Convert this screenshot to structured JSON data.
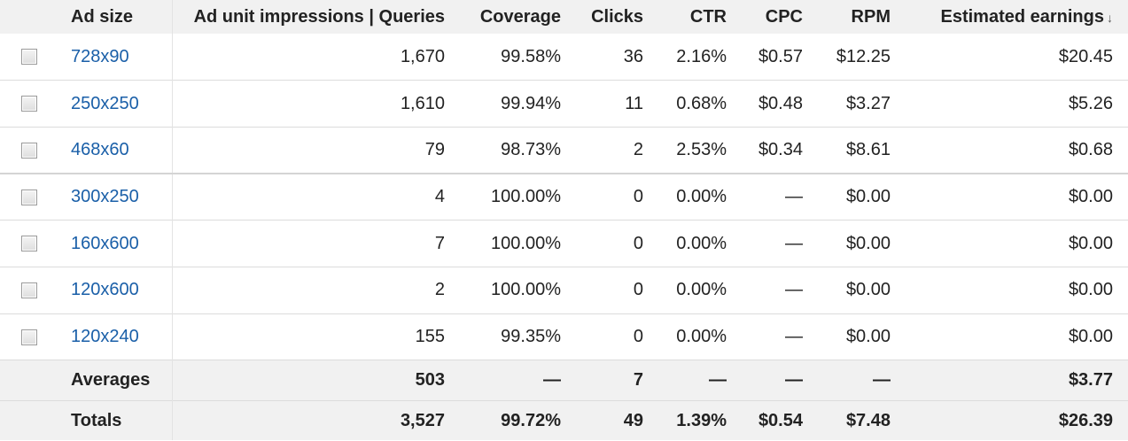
{
  "headers": {
    "ad_size": "Ad size",
    "impressions": "Ad unit impressions | Queries",
    "coverage": "Coverage",
    "clicks": "Clicks",
    "ctr": "CTR",
    "cpc": "CPC",
    "rpm": "RPM",
    "earnings": "Estimated earnings",
    "earnings_sort_icon": "↓"
  },
  "rows": [
    {
      "size": "728x90",
      "impressions": "1,670",
      "coverage": "99.58%",
      "clicks": "36",
      "ctr": "2.16%",
      "cpc": "$0.57",
      "rpm": "$12.25",
      "earnings": "$20.45"
    },
    {
      "size": "250x250",
      "impressions": "1,610",
      "coverage": "99.94%",
      "clicks": "11",
      "ctr": "0.68%",
      "cpc": "$0.48",
      "rpm": "$3.27",
      "earnings": "$5.26"
    },
    {
      "size": "468x60",
      "impressions": "79",
      "coverage": "98.73%",
      "clicks": "2",
      "ctr": "2.53%",
      "cpc": "$0.34",
      "rpm": "$8.61",
      "earnings": "$0.68"
    },
    {
      "size": "300x250",
      "impressions": "4",
      "coverage": "100.00%",
      "clicks": "0",
      "ctr": "0.00%",
      "cpc": "—",
      "rpm": "$0.00",
      "earnings": "$0.00"
    },
    {
      "size": "160x600",
      "impressions": "7",
      "coverage": "100.00%",
      "clicks": "0",
      "ctr": "0.00%",
      "cpc": "—",
      "rpm": "$0.00",
      "earnings": "$0.00"
    },
    {
      "size": "120x600",
      "impressions": "2",
      "coverage": "100.00%",
      "clicks": "0",
      "ctr": "0.00%",
      "cpc": "—",
      "rpm": "$0.00",
      "earnings": "$0.00"
    },
    {
      "size": "120x240",
      "impressions": "155",
      "coverage": "99.35%",
      "clicks": "0",
      "ctr": "0.00%",
      "cpc": "—",
      "rpm": "$0.00",
      "earnings": "$0.00"
    }
  ],
  "averages": {
    "label": "Averages",
    "impressions": "503",
    "coverage": "—",
    "clicks": "7",
    "ctr": "—",
    "cpc": "—",
    "rpm": "—",
    "earnings": "$3.77"
  },
  "totals": {
    "label": "Totals",
    "impressions": "3,527",
    "coverage": "99.72%",
    "clicks": "49",
    "ctr": "1.39%",
    "cpc": "$0.54",
    "rpm": "$7.48",
    "earnings": "$26.39"
  },
  "colors": {
    "link": "#1a5fa8",
    "header_bg": "#f1f1f1"
  }
}
